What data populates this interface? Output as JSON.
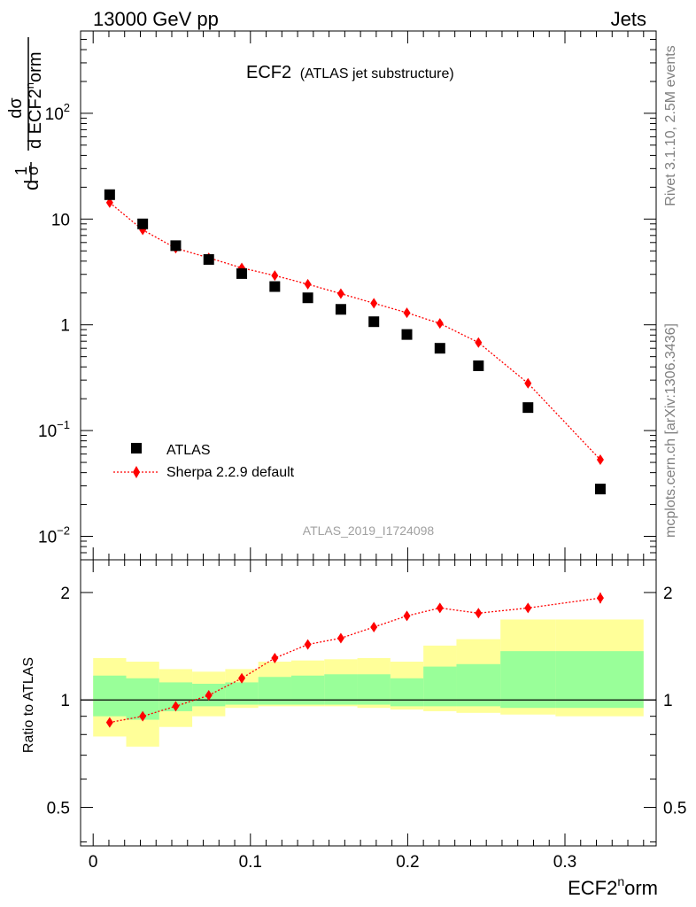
{
  "header": {
    "left": "13000 GeV pp",
    "right": "Jets"
  },
  "plot_title": {
    "main": "ECF2",
    "sub": "(ATLAS jet substructure)"
  },
  "watermark": "ATLAS_2019_I1724098",
  "side_labels": {
    "rivet": "Rivet 3.1.10,  2.5M events",
    "source": "mcplots.cern.ch [arXiv:1306.3436]"
  },
  "axes": {
    "y_label_prefix": "d",
    "y_label_one": "1",
    "y_label_sigma": "σ",
    "y_label_dsigma": "dσ",
    "y_label_denominator": "d ECF2",
    "y_label_sup": "n",
    "y_label_suffix": "orm",
    "x_label_main": "ECF2",
    "x_label_sup": "n",
    "x_label_suffix": "orm",
    "ratio_label": "Ratio to ATLAS",
    "main_ticks": [
      {
        "base": "10",
        "exp": "2",
        "value": 100
      },
      {
        "base": "10",
        "exp": "",
        "value": 10
      },
      {
        "base": "1",
        "exp": "",
        "value": 1
      },
      {
        "base": "10",
        "exp": "−1",
        "value": 0.1
      },
      {
        "base": "10",
        "exp": "−2",
        "value": 0.01
      }
    ],
    "ratio_ticks": [
      "2",
      "1",
      "0.5"
    ],
    "x_ticks": [
      "0",
      "0.1",
      "0.2",
      "0.3"
    ]
  },
  "legend": {
    "data_label": "ATLAS",
    "mc_label": "Sherpa 2.2.9 default"
  },
  "colors": {
    "data": "#000000",
    "mc": "#ff0000",
    "band_inner": "#99ff99",
    "band_outer": "#ffff99"
  },
  "chart_data": [
    {
      "type": "scatter",
      "title": "ECF2",
      "y_scale": "log",
      "xlim": [
        -0.008,
        0.358
      ],
      "ylim": [
        0.006,
        600
      ],
      "x": [
        0.0105,
        0.0315,
        0.0525,
        0.0735,
        0.0945,
        0.1155,
        0.1365,
        0.1575,
        0.1785,
        0.1995,
        0.2205,
        0.245,
        0.2765,
        0.3225
      ],
      "series": [
        {
          "name": "ATLAS",
          "marker": "square",
          "values": [
            17,
            9.0,
            5.6,
            4.15,
            3.05,
            2.3,
            1.8,
            1.4,
            1.07,
            0.81,
            0.6,
            0.41,
            0.165,
            0.028
          ]
        },
        {
          "name": "Sherpa 2.2.9 default",
          "marker": "diamond",
          "line": "dotted",
          "values": [
            14.3,
            7.9,
            5.3,
            4.3,
            3.45,
            2.92,
            2.42,
            1.97,
            1.6,
            1.3,
            1.03,
            0.68,
            0.28,
            0.053
          ]
        }
      ]
    },
    {
      "type": "line",
      "title": "Ratio to ATLAS",
      "y_scale": "log",
      "xlim": [
        -0.008,
        0.358
      ],
      "ylim": [
        0.39,
        2.47
      ],
      "reference_line": 1,
      "x": [
        0.0105,
        0.0315,
        0.0525,
        0.0735,
        0.0945,
        0.1155,
        0.1365,
        0.1575,
        0.1785,
        0.1995,
        0.2205,
        0.245,
        0.2765,
        0.3225
      ],
      "series": [
        {
          "name": "Sherpa 2.2.9 default",
          "values": [
            0.865,
            0.9,
            0.96,
            1.03,
            1.15,
            1.31,
            1.43,
            1.49,
            1.6,
            1.72,
            1.81,
            1.75,
            1.81,
            1.93
          ]
        }
      ],
      "bands": {
        "x_edges": [
          0.0,
          0.021,
          0.042,
          0.063,
          0.084,
          0.105,
          0.126,
          0.147,
          0.168,
          0.189,
          0.21,
          0.231,
          0.259,
          0.294,
          0.35
        ],
        "inner": [
          [
            0.9,
            1.17
          ],
          [
            0.88,
            1.15
          ],
          [
            0.93,
            1.12
          ],
          [
            0.96,
            1.11
          ],
          [
            0.97,
            1.12
          ],
          [
            0.97,
            1.16
          ],
          [
            0.97,
            1.17
          ],
          [
            0.97,
            1.18
          ],
          [
            0.97,
            1.18
          ],
          [
            0.96,
            1.15
          ],
          [
            0.96,
            1.24
          ],
          [
            0.96,
            1.26
          ],
          [
            0.95,
            1.37
          ],
          [
            0.95,
            1.37
          ]
        ],
        "outer": [
          [
            0.79,
            1.31
          ],
          [
            0.74,
            1.28
          ],
          [
            0.84,
            1.22
          ],
          [
            0.9,
            1.2
          ],
          [
            0.95,
            1.22
          ],
          [
            0.96,
            1.28
          ],
          [
            0.96,
            1.29
          ],
          [
            0.96,
            1.3
          ],
          [
            0.95,
            1.31
          ],
          [
            0.94,
            1.28
          ],
          [
            0.93,
            1.42
          ],
          [
            0.92,
            1.48
          ],
          [
            0.91,
            1.68
          ],
          [
            0.9,
            1.68
          ]
        ]
      }
    }
  ]
}
